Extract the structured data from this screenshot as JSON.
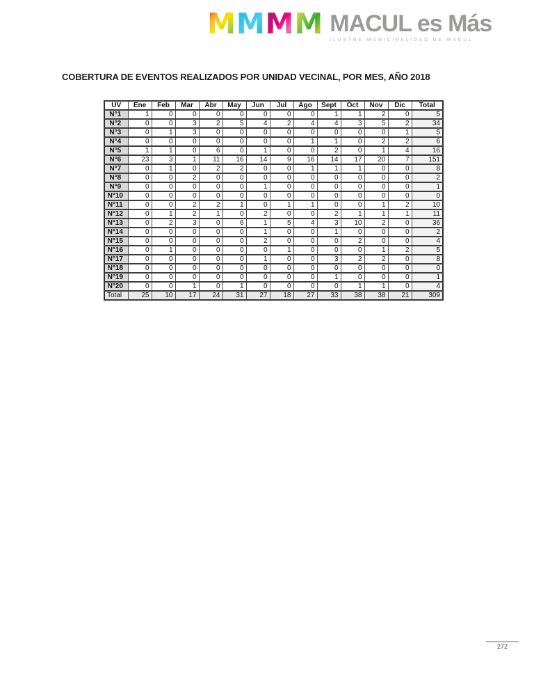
{
  "logo": {
    "monogram_letters": [
      "M",
      "M",
      "M",
      "M"
    ],
    "brand": "MACUL es Más",
    "subtitle": "ILUSTRE MUNICIPALIDAD DE MACUL",
    "colors": {
      "m1_rainbow": [
        "#e8491f",
        "#f5e400",
        "#55b047"
      ],
      "m2_cyan": "#29b8e5",
      "m3_magenta": "#e5007e",
      "m4_green": "#3aaa35",
      "brand_gray": "#9a9a99"
    }
  },
  "title": "COBERTURA DE EVENTOS REALIZADOS POR UNIDAD VECINAL, POR MES, AÑO 2018",
  "chart_data": {
    "type": "table",
    "columns": [
      "UV",
      "Ene",
      "Feb",
      "Mar",
      "Abr",
      "May",
      "Jun",
      "Jul",
      "Ago",
      "Sept",
      "Oct",
      "Nov",
      "Dic",
      "Total"
    ],
    "rows": [
      [
        "N°1",
        1,
        0,
        0,
        0,
        0,
        0,
        0,
        0,
        1,
        1,
        2,
        0,
        5
      ],
      [
        "N°2",
        0,
        0,
        3,
        2,
        5,
        4,
        2,
        4,
        4,
        3,
        5,
        2,
        34
      ],
      [
        "N°3",
        0,
        1,
        3,
        0,
        0,
        0,
        0,
        0,
        0,
        0,
        0,
        1,
        5
      ],
      [
        "N°4",
        0,
        0,
        0,
        0,
        0,
        0,
        0,
        1,
        1,
        0,
        2,
        2,
        6
      ],
      [
        "N°5",
        1,
        1,
        0,
        6,
        0,
        1,
        0,
        0,
        2,
        0,
        1,
        4,
        16
      ],
      [
        "N°6",
        23,
        3,
        1,
        11,
        16,
        14,
        9,
        16,
        14,
        17,
        20,
        7,
        151
      ],
      [
        "N°7",
        0,
        1,
        0,
        2,
        2,
        0,
        0,
        1,
        1,
        1,
        0,
        0,
        8
      ],
      [
        "N°8",
        0,
        0,
        2,
        0,
        0,
        0,
        0,
        0,
        0,
        0,
        0,
        0,
        2
      ],
      [
        "N°9",
        0,
        0,
        0,
        0,
        0,
        1,
        0,
        0,
        0,
        0,
        0,
        0,
        1
      ],
      [
        "N°10",
        0,
        0,
        0,
        0,
        0,
        0,
        0,
        0,
        0,
        0,
        0,
        0,
        0
      ],
      [
        "N°11",
        0,
        0,
        2,
        2,
        1,
        0,
        1,
        1,
        0,
        0,
        1,
        2,
        10
      ],
      [
        "N°12",
        0,
        1,
        2,
        1,
        0,
        2,
        0,
        0,
        2,
        1,
        1,
        1,
        11
      ],
      [
        "N°13",
        0,
        2,
        3,
        0,
        6,
        1,
        5,
        4,
        3,
        10,
        2,
        0,
        36
      ],
      [
        "N°14",
        0,
        0,
        0,
        0,
        0,
        1,
        0,
        0,
        1,
        0,
        0,
        0,
        2
      ],
      [
        "N°15",
        0,
        0,
        0,
        0,
        0,
        2,
        0,
        0,
        0,
        2,
        0,
        0,
        4
      ],
      [
        "N°16",
        0,
        1,
        0,
        0,
        0,
        0,
        1,
        0,
        0,
        0,
        1,
        2,
        5
      ],
      [
        "N°17",
        0,
        0,
        0,
        0,
        0,
        1,
        0,
        0,
        3,
        2,
        2,
        0,
        8
      ],
      [
        "N°18",
        0,
        0,
        0,
        0,
        0,
        0,
        0,
        0,
        0,
        0,
        0,
        0,
        0
      ],
      [
        "N°19",
        0,
        0,
        0,
        0,
        0,
        0,
        0,
        0,
        1,
        0,
        0,
        0,
        1
      ],
      [
        "N°20",
        0,
        0,
        1,
        0,
        1,
        0,
        0,
        0,
        0,
        1,
        1,
        0,
        4
      ]
    ],
    "total_row": [
      "Total",
      25,
      10,
      17,
      24,
      31,
      27,
      18,
      27,
      33,
      38,
      38,
      21,
      309
    ]
  },
  "footer": {
    "page_number": "272"
  }
}
